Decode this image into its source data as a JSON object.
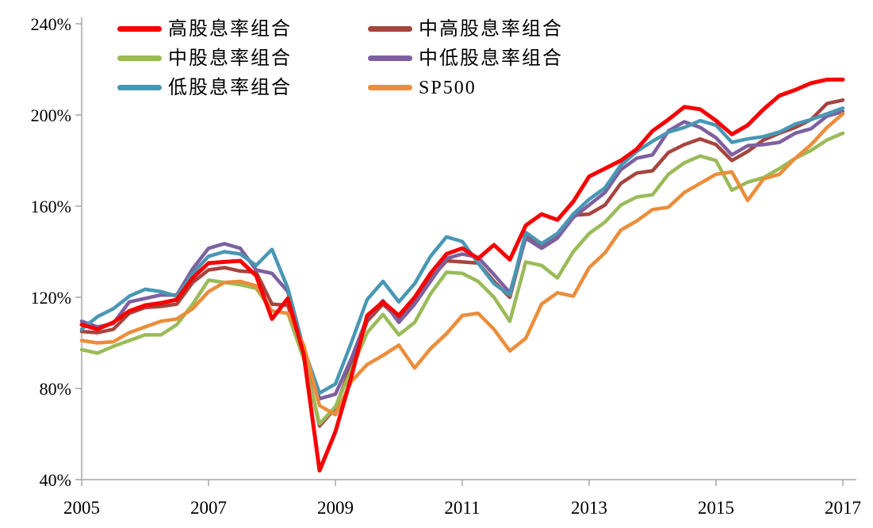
{
  "page": {
    "background": "#ffffff",
    "axis_color": "#a6a6a6",
    "text_color": "#000000"
  },
  "chart_data": {
    "type": "line",
    "title": "",
    "xlabel": "",
    "ylabel": "",
    "grid": false,
    "legend_position": "top-left",
    "ylim": [
      40,
      240
    ],
    "xlim": [
      2005,
      2017
    ],
    "y_ticks": [
      {
        "value": 240,
        "label": "240%"
      },
      {
        "value": 200,
        "label": "200%"
      },
      {
        "value": 160,
        "label": "160%"
      },
      {
        "value": 120,
        "label": "120%"
      },
      {
        "value": 80,
        "label": "80%"
      },
      {
        "value": 40,
        "label": "40%"
      }
    ],
    "x_ticks": [
      {
        "value": 2005,
        "label": "2005"
      },
      {
        "value": 2007,
        "label": "2007"
      },
      {
        "value": 2009,
        "label": "2009"
      },
      {
        "value": 2011,
        "label": "2011"
      },
      {
        "value": 2013,
        "label": "2013"
      },
      {
        "value": 2015,
        "label": "2015"
      },
      {
        "value": 2017,
        "label": "2017"
      }
    ],
    "x": [
      2005,
      2005.25,
      2005.5,
      2005.75,
      2006,
      2006.25,
      2006.5,
      2006.75,
      2007,
      2007.25,
      2007.5,
      2007.75,
      2008,
      2008.25,
      2008.5,
      2008.75,
      2009,
      2009.25,
      2009.5,
      2009.75,
      2010,
      2010.25,
      2010.5,
      2010.75,
      2011,
      2011.25,
      2011.5,
      2011.75,
      2012,
      2012.25,
      2012.5,
      2012.75,
      2013,
      2013.25,
      2013.5,
      2013.75,
      2014,
      2014.25,
      2014.5,
      2014.75,
      2015,
      2015.25,
      2015.5,
      2015.75,
      2016,
      2016.25,
      2016.5,
      2016.75,
      2017
    ],
    "series": [
      {
        "name": "高股息率组合",
        "color": "#f80000",
        "width": 5,
        "values": [
          108,
          106,
          109,
          114,
          116.5,
          117.5,
          119,
          128.5,
          135,
          135.5,
          136,
          129.5,
          110.5,
          119.5,
          95,
          44,
          61,
          85,
          112,
          118,
          112,
          120,
          130.5,
          139,
          141.5,
          137,
          143,
          136.5,
          151.5,
          156.5,
          154,
          162,
          173,
          176.5,
          180,
          185,
          193,
          198,
          203.5,
          202.5,
          197.5,
          191.5,
          195.5,
          202.5,
          208.5,
          211,
          214,
          215.5,
          215.5
        ]
      },
      {
        "name": "中高股息率组合",
        "color": "#a6443e",
        "width": 4.5,
        "values": [
          105,
          104.5,
          106,
          113,
          115.5,
          116,
          117,
          126.5,
          132,
          133,
          131.5,
          131,
          117,
          116.5,
          95,
          63.5,
          71.5,
          90,
          109.5,
          117,
          110.5,
          118.5,
          128,
          136,
          135.5,
          135,
          127,
          120,
          146.5,
          142.5,
          147,
          156,
          156.5,
          160.5,
          170,
          174.5,
          175.5,
          183.5,
          187,
          189.5,
          187,
          180,
          184,
          189,
          192,
          194.5,
          198,
          205,
          206.5
        ]
      },
      {
        "name": "中股息率组合",
        "color": "#9abb59",
        "width": 4.5,
        "values": [
          97,
          95.5,
          98.5,
          101,
          103.5,
          103.5,
          108,
          117,
          127.5,
          126.5,
          125.5,
          124,
          114,
          113,
          93,
          64.5,
          72,
          88,
          104.5,
          112.5,
          103.5,
          109,
          121.5,
          131,
          130.5,
          127,
          120,
          109.5,
          135.5,
          134,
          128.5,
          140,
          148,
          153,
          160.5,
          164,
          165,
          174,
          179,
          182,
          180,
          167,
          170.5,
          172.5,
          176.5,
          181,
          184.5,
          189,
          192
        ]
      },
      {
        "name": "中低股息率组合",
        "color": "#7d60a0",
        "width": 4.5,
        "values": [
          109.5,
          107,
          108.5,
          118,
          119.5,
          121,
          121,
          132.5,
          141.5,
          143.5,
          141.5,
          132,
          130.5,
          122.5,
          96.5,
          75.5,
          77.5,
          93,
          111,
          118.5,
          109,
          117,
          127,
          137,
          139,
          137.5,
          130,
          122,
          146,
          141.5,
          146,
          155,
          160.5,
          166,
          176,
          181,
          182.5,
          193,
          197,
          194.5,
          190,
          182.5,
          186.5,
          187,
          188,
          192,
          194,
          199.5,
          201.5
        ]
      },
      {
        "name": "低股息率组合",
        "color": "#4897b4",
        "width": 4.5,
        "values": [
          106,
          111.5,
          115,
          120.5,
          123.5,
          122.5,
          120.5,
          130.5,
          138,
          140,
          139,
          134,
          141,
          124,
          97.5,
          78,
          82,
          100,
          119,
          127,
          118,
          126,
          138,
          146.5,
          144.5,
          135,
          126,
          121,
          148.5,
          143.5,
          148,
          156.5,
          163,
          168,
          178,
          184,
          188.5,
          192.5,
          194.5,
          197.5,
          195.5,
          188,
          189.5,
          190.5,
          192.5,
          196,
          198,
          200.5,
          203
        ]
      },
      {
        "name": "SP500",
        "color": "#eb8d3a",
        "width": 4.5,
        "values": [
          101,
          100,
          100.5,
          104.5,
          107,
          109.5,
          110.5,
          115,
          122.5,
          126.5,
          127,
          125,
          114,
          113,
          99,
          72.5,
          68.5,
          83,
          90.5,
          94.5,
          99,
          89,
          97.5,
          104,
          112,
          113,
          106,
          96.5,
          102,
          117,
          122,
          120.5,
          133,
          139.5,
          149.5,
          153.5,
          158.5,
          159.5,
          166,
          170,
          174,
          175,
          162.5,
          172,
          174,
          181,
          187,
          194.5,
          200.5
        ]
      }
    ],
    "draw_order": [
      1,
      2,
      3,
      4,
      5,
      0
    ]
  }
}
